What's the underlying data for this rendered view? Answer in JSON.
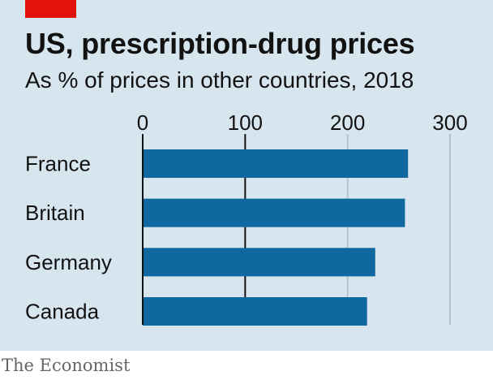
{
  "header": {
    "title": "US, prescription-drug prices",
    "subtitle": "As % of prices in other countries, 2018"
  },
  "footer": {
    "source": "The Economist"
  },
  "colors": {
    "background": "#d7e5ee",
    "bar": "#0f68a0",
    "gridline": "#b5c3cc",
    "baseline": "#121212",
    "accent": "#e3120b",
    "text": "#121212"
  },
  "chart_data": {
    "type": "bar",
    "orientation": "horizontal",
    "title": "US, prescription-drug prices",
    "subtitle": "As % of prices in other countries, 2018",
    "categories": [
      "France",
      "Britain",
      "Germany",
      "Canada"
    ],
    "values": [
      259,
      256,
      227,
      219
    ],
    "xlim": [
      0,
      300
    ],
    "ticks": [
      0,
      100,
      200,
      300
    ],
    "tick_labels": [
      "0",
      "100",
      "200",
      "300"
    ],
    "xlabel": "",
    "ylabel": "",
    "grid": true,
    "legend": "none"
  }
}
